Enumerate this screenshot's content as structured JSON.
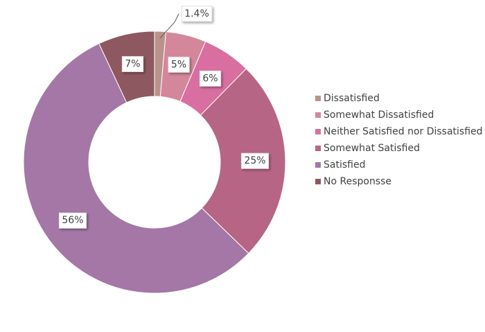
{
  "chart_data": {
    "type": "donut",
    "categories": [
      "Dissatisfied",
      "Somewhat Dissatisfied",
      "Neither Satisfied nor Dissatisfied",
      "Somewhat Satisfied",
      "Satisfied",
      "No Responsse"
    ],
    "values": [
      1.4,
      5,
      6,
      25,
      56,
      7
    ],
    "value_labels": [
      "1.4%",
      "5%",
      "6%",
      "25%",
      "56%",
      "7%"
    ],
    "colors": [
      "#b9938a",
      "#d4879a",
      "#d96ea0",
      "#b76585",
      "#a477a6",
      "#8e5860"
    ],
    "legend": "right"
  }
}
